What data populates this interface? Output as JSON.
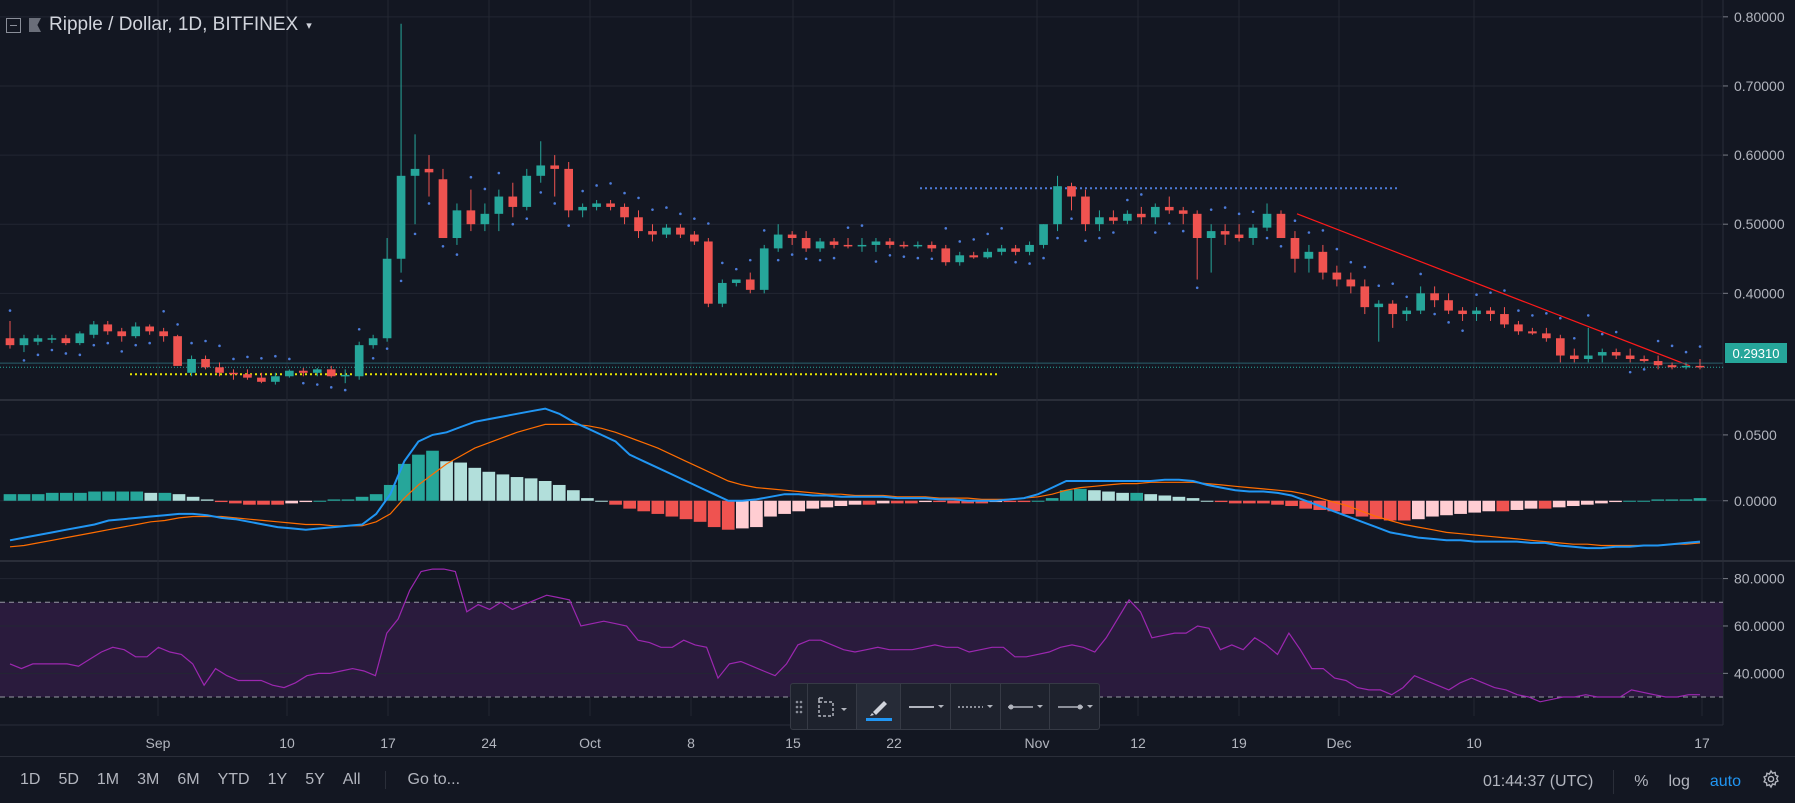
{
  "header": {
    "symbol_label": "Ripple / Dollar, 1D, BITFINEX",
    "caret": "▾"
  },
  "colors": {
    "background": "#131722",
    "up": "#26a69a",
    "down": "#ef5350",
    "macd_line": "#2196f3",
    "signal_line": "#ff6d00",
    "rsi_line": "#9c27b0",
    "sar_dots": "#4c7bd9",
    "trendline": "#ff1a1a",
    "support_line": "#e6e600",
    "accent": "#2196f3"
  },
  "bottom": {
    "ranges": [
      "1D",
      "5D",
      "1M",
      "3M",
      "6M",
      "YTD",
      "1Y",
      "5Y",
      "All"
    ],
    "goto": "Go to...",
    "time": "01:44:37 (UTC)",
    "percent": "%",
    "log": "log",
    "auto": "auto",
    "gear": "gear-icon"
  },
  "toolbar": {
    "items": [
      "drag-handle-icon",
      "select-area-icon",
      "brush-icon",
      "line-style-icon",
      "dash-style-icon",
      "line-width-icon",
      "line-end-icon"
    ]
  },
  "chart_data": [
    {
      "type": "candlestick",
      "title": "Ripple / Dollar, 1D, BITFINEX",
      "x_labels": [
        "Sep",
        "10",
        "17",
        "24",
        "Oct",
        "8",
        "15",
        "22",
        "Nov",
        "12",
        "19",
        "Dec",
        "10",
        "17"
      ],
      "y_ticks": [
        "0.80000",
        "0.70000",
        "0.60000",
        "0.50000",
        "0.40000"
      ],
      "ylim": [
        0.25,
        0.82
      ],
      "last_price": "0.29310",
      "ohlc": [
        [
          0.335,
          0.36,
          0.32,
          0.325
        ],
        [
          0.325,
          0.34,
          0.315,
          0.335
        ],
        [
          0.33,
          0.34,
          0.325,
          0.335
        ],
        [
          0.333,
          0.34,
          0.328,
          0.335
        ],
        [
          0.335,
          0.34,
          0.325,
          0.328
        ],
        [
          0.328,
          0.345,
          0.325,
          0.342
        ],
        [
          0.34,
          0.36,
          0.335,
          0.355
        ],
        [
          0.355,
          0.36,
          0.34,
          0.345
        ],
        [
          0.345,
          0.35,
          0.33,
          0.338
        ],
        [
          0.338,
          0.358,
          0.335,
          0.352
        ],
        [
          0.352,
          0.355,
          0.34,
          0.345
        ],
        [
          0.345,
          0.35,
          0.33,
          0.338
        ],
        [
          0.338,
          0.34,
          0.3,
          0.295
        ],
        [
          0.285,
          0.31,
          0.28,
          0.305
        ],
        [
          0.305,
          0.31,
          0.29,
          0.293
        ],
        [
          0.293,
          0.3,
          0.28,
          0.285
        ],
        [
          0.285,
          0.29,
          0.275,
          0.283
        ],
        [
          0.283,
          0.29,
          0.275,
          0.278
        ],
        [
          0.278,
          0.285,
          0.27,
          0.272
        ],
        [
          0.272,
          0.285,
          0.268,
          0.28
        ],
        [
          0.28,
          0.29,
          0.278,
          0.288
        ],
        [
          0.288,
          0.292,
          0.28,
          0.285
        ],
        [
          0.285,
          0.292,
          0.28,
          0.29
        ],
        [
          0.29,
          0.295,
          0.278,
          0.28
        ],
        [
          0.28,
          0.29,
          0.27,
          0.282
        ],
        [
          0.28,
          0.33,
          0.275,
          0.325
        ],
        [
          0.325,
          0.34,
          0.32,
          0.335
        ],
        [
          0.335,
          0.48,
          0.33,
          0.45
        ],
        [
          0.45,
          0.79,
          0.43,
          0.57
        ],
        [
          0.57,
          0.63,
          0.5,
          0.58
        ],
        [
          0.58,
          0.6,
          0.54,
          0.575
        ],
        [
          0.565,
          0.58,
          0.48,
          0.48
        ],
        [
          0.48,
          0.53,
          0.47,
          0.52
        ],
        [
          0.52,
          0.55,
          0.49,
          0.5
        ],
        [
          0.5,
          0.53,
          0.49,
          0.515
        ],
        [
          0.515,
          0.55,
          0.49,
          0.54
        ],
        [
          0.54,
          0.56,
          0.51,
          0.525
        ],
        [
          0.525,
          0.58,
          0.52,
          0.57
        ],
        [
          0.57,
          0.62,
          0.56,
          0.585
        ],
        [
          0.585,
          0.6,
          0.54,
          0.58
        ],
        [
          0.58,
          0.59,
          0.51,
          0.52
        ],
        [
          0.52,
          0.53,
          0.51,
          0.525
        ],
        [
          0.525,
          0.535,
          0.52,
          0.53
        ],
        [
          0.53,
          0.535,
          0.52,
          0.525
        ],
        [
          0.525,
          0.53,
          0.5,
          0.51
        ],
        [
          0.51,
          0.52,
          0.48,
          0.49
        ],
        [
          0.49,
          0.5,
          0.475,
          0.485
        ],
        [
          0.485,
          0.5,
          0.48,
          0.495
        ],
        [
          0.495,
          0.5,
          0.48,
          0.485
        ],
        [
          0.485,
          0.49,
          0.47,
          0.475
        ],
        [
          0.475,
          0.48,
          0.38,
          0.385
        ],
        [
          0.385,
          0.42,
          0.38,
          0.415
        ],
        [
          0.415,
          0.42,
          0.41,
          0.42
        ],
        [
          0.42,
          0.43,
          0.4,
          0.405
        ],
        [
          0.405,
          0.47,
          0.4,
          0.465
        ],
        [
          0.465,
          0.5,
          0.46,
          0.485
        ],
        [
          0.485,
          0.49,
          0.47,
          0.48
        ],
        [
          0.48,
          0.49,
          0.46,
          0.465
        ],
        [
          0.465,
          0.48,
          0.46,
          0.475
        ],
        [
          0.475,
          0.48,
          0.465,
          0.47
        ],
        [
          0.47,
          0.48,
          0.465,
          0.468
        ],
        [
          0.468,
          0.48,
          0.46,
          0.47
        ],
        [
          0.47,
          0.48,
          0.46,
          0.475
        ],
        [
          0.475,
          0.48,
          0.465,
          0.47
        ],
        [
          0.47,
          0.475,
          0.465,
          0.468
        ],
        [
          0.468,
          0.475,
          0.465,
          0.47
        ],
        [
          0.47,
          0.475,
          0.46,
          0.465
        ],
        [
          0.465,
          0.47,
          0.44,
          0.445
        ],
        [
          0.445,
          0.46,
          0.44,
          0.455
        ],
        [
          0.455,
          0.46,
          0.45,
          0.452
        ],
        [
          0.452,
          0.465,
          0.45,
          0.46
        ],
        [
          0.46,
          0.47,
          0.455,
          0.465
        ],
        [
          0.465,
          0.47,
          0.455,
          0.46
        ],
        [
          0.46,
          0.475,
          0.455,
          0.47
        ],
        [
          0.47,
          0.5,
          0.465,
          0.5
        ],
        [
          0.5,
          0.57,
          0.49,
          0.555
        ],
        [
          0.555,
          0.56,
          0.52,
          0.54
        ],
        [
          0.54,
          0.55,
          0.49,
          0.5
        ],
        [
          0.5,
          0.52,
          0.49,
          0.51
        ],
        [
          0.51,
          0.52,
          0.5,
          0.505
        ],
        [
          0.505,
          0.52,
          0.5,
          0.515
        ],
        [
          0.515,
          0.525,
          0.5,
          0.51
        ],
        [
          0.51,
          0.53,
          0.5,
          0.525
        ],
        [
          0.525,
          0.54,
          0.515,
          0.52
        ],
        [
          0.52,
          0.525,
          0.5,
          0.515
        ],
        [
          0.515,
          0.52,
          0.42,
          0.48
        ],
        [
          0.48,
          0.5,
          0.43,
          0.49
        ],
        [
          0.49,
          0.5,
          0.47,
          0.485
        ],
        [
          0.485,
          0.5,
          0.475,
          0.48
        ],
        [
          0.48,
          0.5,
          0.47,
          0.495
        ],
        [
          0.495,
          0.53,
          0.49,
          0.515
        ],
        [
          0.515,
          0.52,
          0.48,
          0.48
        ],
        [
          0.48,
          0.49,
          0.43,
          0.45
        ],
        [
          0.45,
          0.47,
          0.43,
          0.46
        ],
        [
          0.46,
          0.47,
          0.42,
          0.43
        ],
        [
          0.43,
          0.44,
          0.41,
          0.42
        ],
        [
          0.42,
          0.43,
          0.4,
          0.41
        ],
        [
          0.41,
          0.42,
          0.37,
          0.38
        ],
        [
          0.38,
          0.39,
          0.33,
          0.385
        ],
        [
          0.385,
          0.39,
          0.35,
          0.37
        ],
        [
          0.37,
          0.38,
          0.36,
          0.375
        ],
        [
          0.375,
          0.41,
          0.37,
          0.4
        ],
        [
          0.4,
          0.41,
          0.38,
          0.39
        ],
        [
          0.39,
          0.4,
          0.37,
          0.375
        ],
        [
          0.375,
          0.38,
          0.36,
          0.37
        ],
        [
          0.37,
          0.38,
          0.36,
          0.375
        ],
        [
          0.375,
          0.38,
          0.36,
          0.37
        ],
        [
          0.37,
          0.38,
          0.35,
          0.355
        ],
        [
          0.355,
          0.36,
          0.34,
          0.345
        ],
        [
          0.345,
          0.35,
          0.34,
          0.342
        ],
        [
          0.342,
          0.35,
          0.33,
          0.335
        ],
        [
          0.335,
          0.34,
          0.3,
          0.31
        ],
        [
          0.31,
          0.32,
          0.3,
          0.305
        ],
        [
          0.305,
          0.35,
          0.3,
          0.31
        ],
        [
          0.31,
          0.32,
          0.3,
          0.315
        ],
        [
          0.315,
          0.32,
          0.305,
          0.31
        ],
        [
          0.31,
          0.32,
          0.3,
          0.305
        ],
        [
          0.305,
          0.31,
          0.3,
          0.302
        ],
        [
          0.302,
          0.31,
          0.29,
          0.296
        ],
        [
          0.296,
          0.3,
          0.29,
          0.293
        ],
        [
          0.293,
          0.3,
          0.29,
          0.295
        ],
        [
          0.295,
          0.305,
          0.29,
          0.293
        ]
      ]
    },
    {
      "type": "macd",
      "y_ticks": [
        "0.0500",
        "0.0000"
      ],
      "ylim": [
        -0.045,
        0.075
      ],
      "hist": [
        0.005,
        0.005,
        0.005,
        0.006,
        0.006,
        0.006,
        0.007,
        0.007,
        0.007,
        0.007,
        0.006,
        0.006,
        0.005,
        0.003,
        0.001,
        -0.001,
        -0.002,
        -0.003,
        -0.003,
        -0.003,
        -0.002,
        -0.001,
        0,
        0.001,
        0.001,
        0.003,
        0.005,
        0.012,
        0.028,
        0.035,
        0.038,
        0.03,
        0.029,
        0.025,
        0.022,
        0.02,
        0.018,
        0.017,
        0.015,
        0.012,
        0.008,
        0.002,
        0,
        -0.003,
        -0.006,
        -0.008,
        -0.01,
        -0.012,
        -0.014,
        -0.016,
        -0.02,
        -0.022,
        -0.021,
        -0.02,
        -0.012,
        -0.01,
        -0.008,
        -0.006,
        -0.005,
        -0.004,
        -0.003,
        -0.003,
        -0.002,
        -0.002,
        -0.002,
        -0.001,
        -0.001,
        -0.002,
        -0.002,
        -0.002,
        -0.001,
        -0.001,
        -0.001,
        0,
        0.002,
        0.008,
        0.009,
        0.008,
        0.007,
        0.006,
        0.006,
        0.005,
        0.004,
        0.003,
        0.002,
        0,
        -0.001,
        -0.002,
        -0.002,
        -0.002,
        -0.003,
        -0.004,
        -0.006,
        -0.007,
        -0.008,
        -0.01,
        -0.012,
        -0.014,
        -0.015,
        -0.015,
        -0.014,
        -0.012,
        -0.011,
        -0.01,
        -0.009,
        -0.008,
        -0.008,
        -0.007,
        -0.006,
        -0.006,
        -0.005,
        -0.004,
        -0.003,
        -0.002,
        -0.001,
        0,
        0,
        0.001,
        0.001,
        0.001,
        0.002
      ],
      "macd": [
        -0.03,
        -0.028,
        -0.026,
        -0.024,
        -0.022,
        -0.02,
        -0.018,
        -0.015,
        -0.014,
        -0.013,
        -0.012,
        -0.011,
        -0.01,
        -0.01,
        -0.011,
        -0.013,
        -0.014,
        -0.016,
        -0.018,
        -0.02,
        -0.021,
        -0.022,
        -0.021,
        -0.02,
        -0.019,
        -0.018,
        -0.01,
        0.005,
        0.03,
        0.045,
        0.05,
        0.052,
        0.056,
        0.06,
        0.062,
        0.064,
        0.066,
        0.068,
        0.07,
        0.066,
        0.06,
        0.055,
        0.05,
        0.045,
        0.035,
        0.03,
        0.025,
        0.02,
        0.015,
        0.01,
        0.005,
        0,
        0,
        0.001,
        0.003,
        0.005,
        0.005,
        0.004,
        0.004,
        0.003,
        0.003,
        0.003,
        0.003,
        0.002,
        0.002,
        0.002,
        0.001,
        0.001,
        0,
        0,
        0,
        0.001,
        0.002,
        0.005,
        0.01,
        0.015,
        0.015,
        0.015,
        0.015,
        0.015,
        0.015,
        0.015,
        0.016,
        0.016,
        0.015,
        0.012,
        0.01,
        0.008,
        0.007,
        0.007,
        0.006,
        0.004,
        0,
        -0.004,
        -0.008,
        -0.012,
        -0.016,
        -0.02,
        -0.024,
        -0.026,
        -0.028,
        -0.029,
        -0.03,
        -0.03,
        -0.031,
        -0.031,
        -0.031,
        -0.031,
        -0.032,
        -0.032,
        -0.034,
        -0.035,
        -0.036,
        -0.036,
        -0.035,
        -0.035,
        -0.034,
        -0.034,
        -0.033,
        -0.032,
        -0.031
      ],
      "signal": [
        -0.035,
        -0.034,
        -0.032,
        -0.03,
        -0.028,
        -0.026,
        -0.024,
        -0.022,
        -0.02,
        -0.018,
        -0.016,
        -0.015,
        -0.013,
        -0.012,
        -0.012,
        -0.012,
        -0.013,
        -0.014,
        -0.015,
        -0.016,
        -0.017,
        -0.018,
        -0.018,
        -0.019,
        -0.019,
        -0.019,
        -0.016,
        -0.01,
        0.002,
        0.012,
        0.02,
        0.028,
        0.034,
        0.04,
        0.044,
        0.048,
        0.052,
        0.055,
        0.058,
        0.058,
        0.058,
        0.057,
        0.055,
        0.052,
        0.048,
        0.044,
        0.04,
        0.035,
        0.03,
        0.025,
        0.02,
        0.015,
        0.012,
        0.01,
        0.009,
        0.008,
        0.007,
        0.006,
        0.005,
        0.005,
        0.004,
        0.004,
        0.004,
        0.003,
        0.003,
        0.003,
        0.002,
        0.002,
        0.002,
        0.001,
        0.001,
        0.001,
        0.002,
        0.003,
        0.005,
        0.008,
        0.01,
        0.011,
        0.012,
        0.013,
        0.013,
        0.014,
        0.014,
        0.014,
        0.014,
        0.013,
        0.012,
        0.011,
        0.01,
        0.009,
        0.008,
        0.007,
        0.005,
        0.002,
        -0.001,
        -0.004,
        -0.008,
        -0.012,
        -0.015,
        -0.018,
        -0.02,
        -0.022,
        -0.024,
        -0.025,
        -0.026,
        -0.027,
        -0.028,
        -0.029,
        -0.03,
        -0.031,
        -0.032,
        -0.033,
        -0.033,
        -0.034,
        -0.034,
        -0.034,
        -0.034,
        -0.034,
        -0.033,
        -0.033,
        -0.032
      ]
    },
    {
      "type": "rsi",
      "y_ticks": [
        "80.0000",
        "60.0000",
        "40.0000"
      ],
      "ylim": [
        22,
        87
      ],
      "bands": [
        30,
        70
      ],
      "values": [
        44,
        42,
        44,
        44,
        44,
        44,
        43,
        46,
        49,
        51,
        50,
        47,
        47,
        51,
        49,
        48,
        44,
        35,
        42,
        39,
        37,
        37,
        37,
        35,
        34,
        36,
        39,
        40,
        40,
        41,
        42,
        41,
        39,
        57,
        63,
        75,
        83,
        84,
        84,
        83,
        66,
        69,
        67,
        70,
        67,
        69,
        71,
        73,
        72,
        71,
        60,
        61,
        62,
        61,
        60,
        54,
        53,
        51,
        51,
        54,
        52,
        51,
        38,
        44,
        45,
        43,
        41,
        39,
        44,
        52,
        54,
        54,
        52,
        50,
        49,
        50,
        51,
        50,
        50,
        50,
        51,
        52,
        51,
        51,
        49,
        50,
        51,
        51,
        47,
        47,
        48,
        49,
        51,
        52,
        51,
        49,
        55,
        63,
        71,
        66,
        55,
        56,
        57,
        57,
        60,
        59,
        50,
        52,
        50,
        55,
        52,
        48,
        57,
        50,
        42,
        42,
        38,
        37,
        34,
        33,
        33,
        31,
        34,
        39
      ],
      "rsi_tail": [
        37,
        35,
        33,
        36,
        38,
        36,
        34,
        33,
        31,
        30,
        28,
        29,
        30,
        30,
        31,
        30,
        30,
        30,
        33,
        32,
        31,
        30,
        30,
        31,
        31
      ]
    }
  ]
}
